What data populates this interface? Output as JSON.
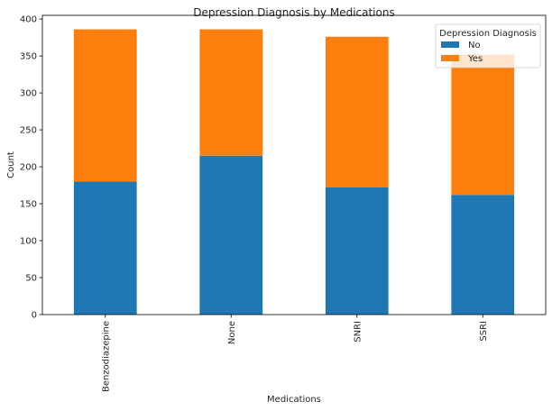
{
  "chart_data": {
    "type": "bar",
    "stacked": true,
    "title": "Depression Diagnosis by Medications",
    "xlabel": "Medications",
    "ylabel": "Count",
    "categories": [
      "Benzodiazepine",
      "None",
      "SNRI",
      "SSRI"
    ],
    "series": [
      {
        "name": "No",
        "color": "#1f77b4",
        "values": [
          180,
          215,
          172,
          162
        ]
      },
      {
        "name": "Yes",
        "color": "#ff7f0e",
        "values": [
          206,
          171,
          204,
          190
        ]
      }
    ],
    "ylim": [
      0,
      405
    ],
    "yticks": [
      0,
      50,
      100,
      150,
      200,
      250,
      300,
      350,
      400
    ],
    "legend": {
      "title": "Depression Diagnosis",
      "position": "top-right"
    },
    "grid": false
  }
}
